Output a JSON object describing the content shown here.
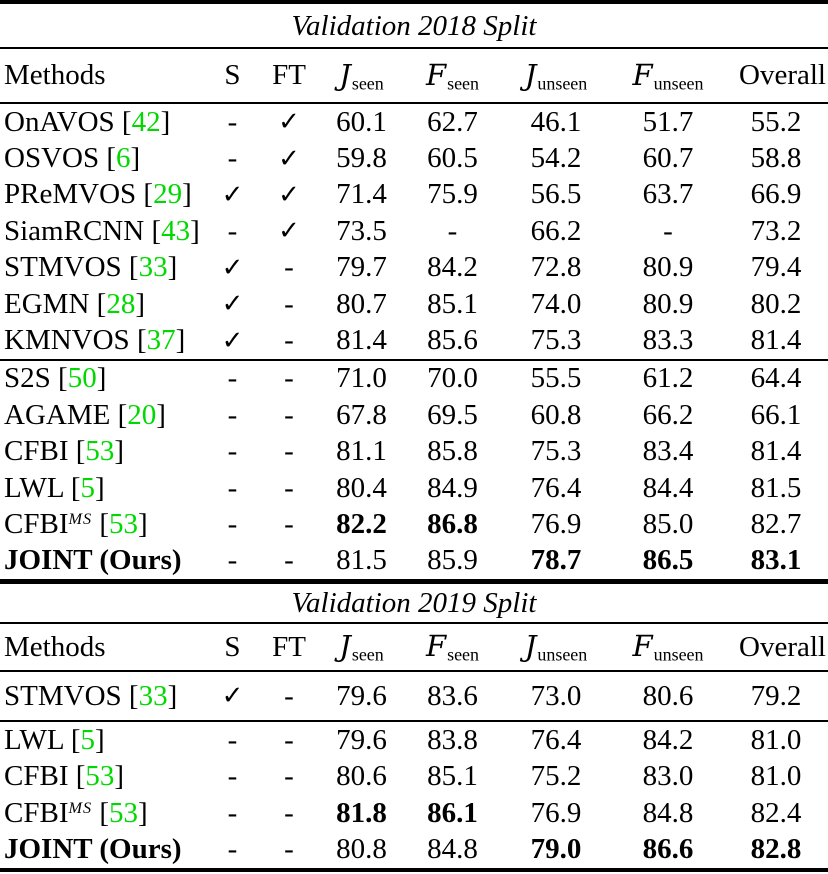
{
  "page": {
    "background": "#ffffff",
    "text_color": "#000000",
    "cite_color": "#00D900",
    "rule_color": "#000000"
  },
  "glyphs": {
    "check": "✓",
    "dash": "-",
    "bracket_open": "[",
    "bracket_close": "]"
  },
  "columns": [
    {
      "label": "Methods"
    },
    {
      "label": "S"
    },
    {
      "label": "FT"
    },
    {
      "main": "J",
      "sub": "seen"
    },
    {
      "main": "F",
      "sub": "seen"
    },
    {
      "main": "J",
      "sub": "unseen"
    },
    {
      "main": "F",
      "sub": "unseen"
    },
    {
      "label": "Overall"
    }
  ],
  "tables": [
    {
      "title": "Validation 2018 Split",
      "groups": [
        {
          "rows": [
            {
              "method": "OnAVOS",
              "cite": "42",
              "s": "-",
              "ft": "✓",
              "vals": [
                {
                  "v": "60.1"
                },
                {
                  "v": "62.7"
                },
                {
                  "v": "46.1"
                },
                {
                  "v": "51.7"
                },
                {
                  "v": "55.2"
                }
              ]
            },
            {
              "method": "OSVOS",
              "cite": "6",
              "s": "-",
              "ft": "✓",
              "vals": [
                {
                  "v": "59.8"
                },
                {
                  "v": "60.5"
                },
                {
                  "v": "54.2"
                },
                {
                  "v": "60.7"
                },
                {
                  "v": "58.8"
                }
              ]
            },
            {
              "method": "PReMVOS",
              "cite": "29",
              "s": "✓",
              "ft": "✓",
              "vals": [
                {
                  "v": "71.4"
                },
                {
                  "v": "75.9"
                },
                {
                  "v": "56.5"
                },
                {
                  "v": "63.7"
                },
                {
                  "v": "66.9"
                }
              ]
            },
            {
              "method": "SiamRCNN",
              "cite": "43",
              "s": "-",
              "ft": "✓",
              "vals": [
                {
                  "v": "73.5"
                },
                {
                  "v": "-"
                },
                {
                  "v": "66.2"
                },
                {
                  "v": "-"
                },
                {
                  "v": "73.2"
                }
              ]
            },
            {
              "method": "STMVOS",
              "cite": "33",
              "s": "✓",
              "ft": "-",
              "vals": [
                {
                  "v": "79.7"
                },
                {
                  "v": "84.2"
                },
                {
                  "v": "72.8"
                },
                {
                  "v": "80.9"
                },
                {
                  "v": "79.4"
                }
              ]
            },
            {
              "method": "EGMN",
              "cite": "28",
              "s": "✓",
              "ft": "-",
              "vals": [
                {
                  "v": "80.7"
                },
                {
                  "v": "85.1"
                },
                {
                  "v": "74.0"
                },
                {
                  "v": "80.9"
                },
                {
                  "v": "80.2"
                }
              ]
            },
            {
              "method": "KMNVOS",
              "cite": "37",
              "s": "✓",
              "ft": "-",
              "vals": [
                {
                  "v": "81.4"
                },
                {
                  "v": "85.6"
                },
                {
                  "v": "75.3"
                },
                {
                  "v": "83.3"
                },
                {
                  "v": "81.4"
                }
              ]
            }
          ]
        },
        {
          "rows": [
            {
              "method": "S2S",
              "cite": "50",
              "s": "-",
              "ft": "-",
              "vals": [
                {
                  "v": "71.0"
                },
                {
                  "v": "70.0"
                },
                {
                  "v": "55.5"
                },
                {
                  "v": "61.2"
                },
                {
                  "v": "64.4"
                }
              ]
            },
            {
              "method": "AGAME",
              "cite": "20",
              "s": "-",
              "ft": "-",
              "vals": [
                {
                  "v": "67.8"
                },
                {
                  "v": "69.5"
                },
                {
                  "v": "60.8"
                },
                {
                  "v": "66.2"
                },
                {
                  "v": "66.1"
                }
              ]
            },
            {
              "method": "CFBI",
              "cite": "53",
              "s": "-",
              "ft": "-",
              "vals": [
                {
                  "v": "81.1"
                },
                {
                  "v": "85.8"
                },
                {
                  "v": "75.3"
                },
                {
                  "v": "83.4"
                },
                {
                  "v": "81.4"
                }
              ]
            },
            {
              "method": "LWL",
              "cite": "5",
              "s": "-",
              "ft": "-",
              "vals": [
                {
                  "v": "80.4"
                },
                {
                  "v": "84.9"
                },
                {
                  "v": "76.4"
                },
                {
                  "v": "84.4"
                },
                {
                  "v": "81.5"
                }
              ]
            },
            {
              "method": "CFBI",
              "sup": "MS",
              "cite": "53",
              "s": "-",
              "ft": "-",
              "vals": [
                {
                  "v": "82.2",
                  "b": true
                },
                {
                  "v": "86.8",
                  "b": true
                },
                {
                  "v": "76.9"
                },
                {
                  "v": "85.0"
                },
                {
                  "v": "82.7"
                }
              ]
            },
            {
              "method": "JOINT (Ours)",
              "bold": true,
              "s": "-",
              "ft": "-",
              "vals": [
                {
                  "v": "81.5"
                },
                {
                  "v": "85.9"
                },
                {
                  "v": "78.7",
                  "b": true
                },
                {
                  "v": "86.5",
                  "b": true
                },
                {
                  "v": "83.1",
                  "b": true
                }
              ]
            }
          ]
        }
      ]
    },
    {
      "title": "Validation 2019 Split",
      "groups": [
        {
          "rows": [
            {
              "method": "STMVOS",
              "cite": "33",
              "s": "✓",
              "ft": "-",
              "vals": [
                {
                  "v": "79.6"
                },
                {
                  "v": "83.6"
                },
                {
                  "v": "73.0"
                },
                {
                  "v": "80.6"
                },
                {
                  "v": "79.2"
                }
              ]
            }
          ]
        },
        {
          "rows": [
            {
              "method": "LWL",
              "cite": "5",
              "s": "-",
              "ft": "-",
              "vals": [
                {
                  "v": "79.6"
                },
                {
                  "v": "83.8"
                },
                {
                  "v": "76.4"
                },
                {
                  "v": "84.2"
                },
                {
                  "v": "81.0"
                }
              ]
            },
            {
              "method": "CFBI",
              "cite": "53",
              "s": "-",
              "ft": "-",
              "vals": [
                {
                  "v": "80.6"
                },
                {
                  "v": "85.1"
                },
                {
                  "v": "75.2"
                },
                {
                  "v": "83.0"
                },
                {
                  "v": "81.0"
                }
              ]
            },
            {
              "method": "CFBI",
              "sup": "MS",
              "cite": "53",
              "s": "-",
              "ft": "-",
              "vals": [
                {
                  "v": "81.8",
                  "b": true
                },
                {
                  "v": "86.1",
                  "b": true
                },
                {
                  "v": "76.9"
                },
                {
                  "v": "84.8"
                },
                {
                  "v": "82.4"
                }
              ]
            },
            {
              "method": "JOINT (Ours)",
              "bold": true,
              "s": "-",
              "ft": "-",
              "vals": [
                {
                  "v": "80.8"
                },
                {
                  "v": "84.8"
                },
                {
                  "v": "79.0",
                  "b": true
                },
                {
                  "v": "86.6",
                  "b": true
                },
                {
                  "v": "82.8",
                  "b": true
                }
              ]
            }
          ]
        }
      ]
    }
  ]
}
